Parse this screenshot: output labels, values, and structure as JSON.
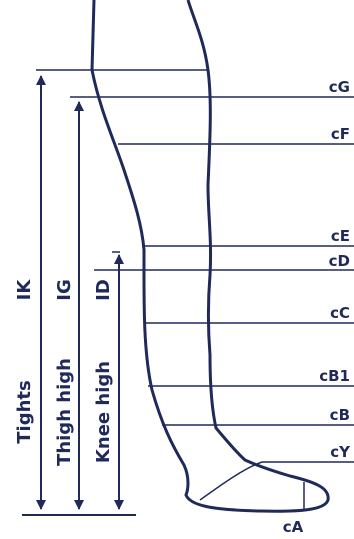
{
  "colors": {
    "navy": "#1f2a5a",
    "background": "#ffffff"
  },
  "measurements": {
    "cG": "cG",
    "cF": "cF",
    "cE": "cE",
    "cD": "cD",
    "cC": "cC",
    "cB1": "cB1",
    "cB": "cB",
    "cY": "cY",
    "cA": "cA"
  },
  "lengths": {
    "IK": "IK",
    "IG": "IG",
    "ID": "ID"
  },
  "types": {
    "tights": "Tights",
    "thigh_high": "Thigh high",
    "knee_high": "Knee high"
  }
}
